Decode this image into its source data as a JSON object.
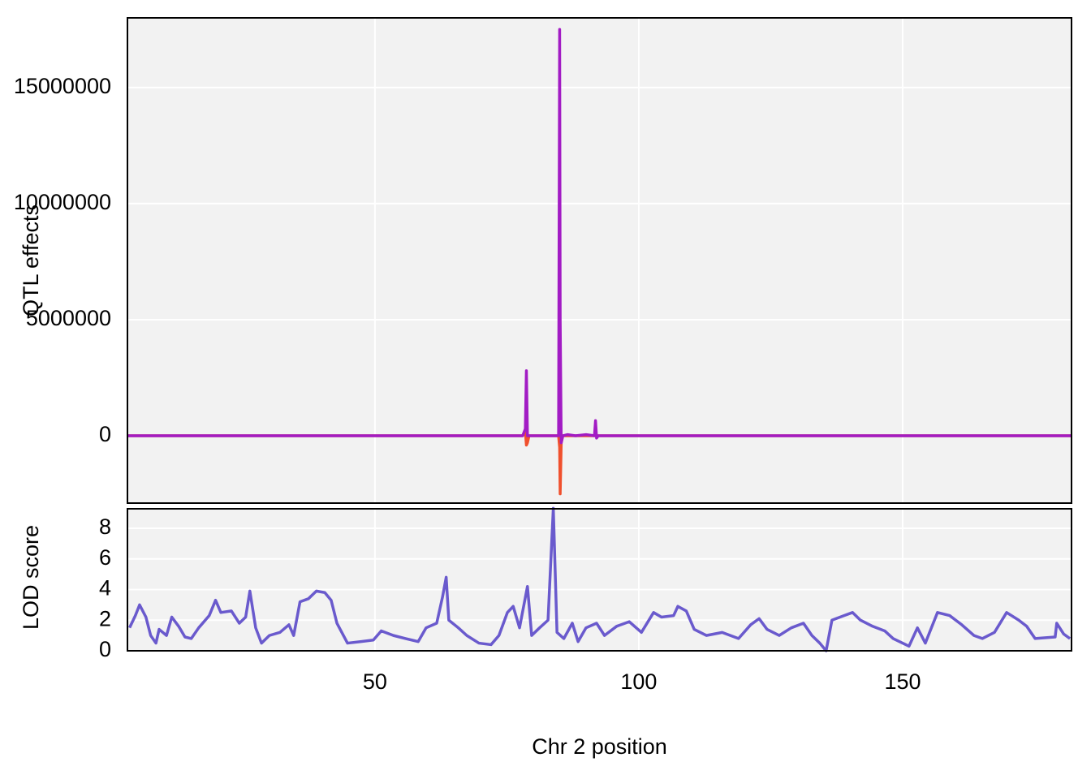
{
  "chart_data": [
    {
      "type": "line",
      "ylabel": "QTL effects",
      "xlim": [
        3.1,
        182
      ],
      "xticks": [
        50,
        100,
        150
      ],
      "ylim": [
        -2900000,
        18000000
      ],
      "yticks": [
        0,
        5000000,
        10000000,
        15000000
      ],
      "grid": true,
      "x": [
        3.1,
        78.0,
        78.5,
        78.7,
        78.9,
        79.2,
        84.5,
        84.8,
        85.0,
        85.1,
        85.3,
        85.6,
        86.5,
        88,
        90,
        91.6,
        91.8,
        92.0,
        92.3,
        182
      ],
      "series": [
        {
          "color": "#f0502d",
          "values": [
            0,
            0,
            200000,
            -400000,
            -300000,
            0,
            0,
            0,
            -500000,
            -2500000,
            -300000,
            0,
            0,
            0,
            0,
            0,
            100000,
            0,
            0,
            0
          ]
        },
        {
          "color": "#a21cc4",
          "values": [
            0,
            0,
            300000,
            2800000,
            0,
            0,
            0,
            0,
            17500000,
            5000000,
            -300000,
            0,
            50000,
            0,
            50000,
            0,
            650000,
            -100000,
            0,
            0
          ]
        }
      ]
    },
    {
      "type": "line",
      "xlabel": "Chr 2 position",
      "ylabel": "LOD score",
      "xlim": [
        3.1,
        182
      ],
      "xticks": [
        50,
        100,
        150
      ],
      "ylim": [
        0,
        9.27
      ],
      "yticks": [
        0,
        2,
        4,
        6,
        8
      ],
      "grid": true,
      "x": [
        3.5,
        4.6,
        5.4,
        6.6,
        7.5,
        8.5,
        9.1,
        10.5,
        11.5,
        12.8,
        14,
        15.2,
        16.6,
        18.6,
        19.8,
        20.8,
        22.8,
        24.3,
        25.5,
        26.3,
        27.4,
        28.5,
        30,
        32,
        33.7,
        34.6,
        35.8,
        37.4,
        38.9,
        40.5,
        41.7,
        42.8,
        44.8,
        47.4,
        49.7,
        51.2,
        53.5,
        55.8,
        58.2,
        59.7,
        61.7,
        62.8,
        63.5,
        64,
        65.8,
        67.4,
        69.7,
        72,
        73.5,
        75.1,
        76.2,
        77.4,
        78.9,
        79.7,
        81.2,
        82.8,
        83.8,
        84.5,
        85.8,
        87.4,
        88.5,
        90,
        92,
        93.5,
        95.8,
        98.2,
        100.5,
        102.8,
        104.3,
        106.6,
        107.4,
        109,
        110.5,
        112.8,
        115.8,
        118.9,
        121.2,
        122.8,
        124.3,
        126.6,
        128.9,
        131.2,
        132.8,
        134.3,
        135.5,
        136.6,
        138.9,
        140.5,
        142,
        144.3,
        146.6,
        148.2,
        151.2,
        152.8,
        154.3,
        156.6,
        158.9,
        161.2,
        163.5,
        165.1,
        167.4,
        169.7,
        172,
        173.5,
        175.1,
        178.9,
        179.2,
        180.5,
        181.7
      ],
      "color": "#6a5acd",
      "values": [
        1.5,
        2.3,
        3.0,
        2.2,
        1.0,
        0.5,
        1.4,
        1.0,
        2.2,
        1.6,
        0.9,
        0.8,
        1.5,
        2.3,
        3.3,
        2.5,
        2.6,
        1.8,
        2.2,
        3.9,
        1.5,
        0.5,
        1.0,
        1.2,
        1.7,
        1.0,
        3.2,
        3.4,
        3.9,
        3.8,
        3.3,
        1.8,
        0.5,
        0.6,
        0.7,
        1.3,
        1.0,
        0.8,
        0.6,
        1.5,
        1.8,
        3.5,
        4.8,
        2.0,
        1.5,
        1.0,
        0.5,
        0.4,
        1.0,
        2.5,
        2.9,
        1.5,
        4.2,
        1.0,
        1.5,
        2.0,
        9.3,
        1.2,
        0.8,
        1.8,
        0.6,
        1.5,
        1.8,
        1.0,
        1.6,
        1.9,
        1.2,
        2.5,
        2.2,
        2.3,
        2.9,
        2.6,
        1.4,
        1.0,
        1.2,
        0.8,
        1.7,
        2.1,
        1.4,
        1.0,
        1.5,
        1.8,
        1.0,
        0.5,
        0.0,
        2.0,
        2.3,
        2.5,
        2.0,
        1.6,
        1.3,
        0.8,
        0.3,
        1.5,
        0.5,
        2.5,
        2.3,
        1.7,
        1.0,
        0.8,
        1.2,
        2.5,
        2.0,
        1.6,
        0.8,
        0.9,
        1.8,
        1.1,
        0.8
      ]
    }
  ]
}
